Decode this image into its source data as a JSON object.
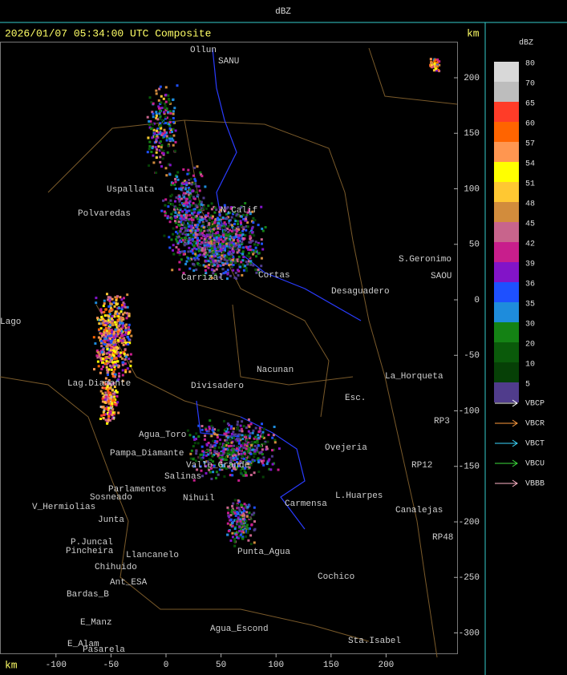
{
  "top_bar": {
    "title": "dBZ"
  },
  "map": {
    "header": "2026/01/07 05:34:00 UTC Composite",
    "y_unit": "km",
    "x_unit": "km",
    "x_ticks": [
      -100,
      -50,
      0,
      50,
      100,
      150,
      200
    ],
    "y_ticks": [
      200,
      150,
      100,
      50,
      0,
      -50,
      -100,
      -150,
      -200,
      -250,
      -300
    ],
    "places": [
      "Ollun",
      "SANU",
      "Uspallata",
      "Polvaredas",
      "N.Calif",
      "S.Geronimo",
      "SAOU",
      "Desaguadero",
      "Carrizal",
      "Cortas",
      "La_Horqueta",
      "Nacunan",
      "Divisadero",
      "Lag.Diamante",
      "Esc.",
      "Agua_Toro",
      "Pampa_Diamante",
      "Ovejeria",
      "Sosneado",
      "Parlamentos",
      "Salinas",
      "Valle_Grande",
      "Nihuil",
      "Carmensa",
      "L.Huarpes",
      "Canalejas",
      "V_Hermiolias",
      "Junta",
      "P.Juncal",
      "Pincheira",
      "Chihuido",
      "Llancanelo",
      "Punta_Agua",
      "Cochico",
      "Ant_ESA",
      "Bardas_B",
      "E_Manz",
      "E_Alam",
      "Pasarela",
      "Agua_Escond",
      "Sta.Isabel",
      "RP3",
      "RP12",
      "RP48",
      "Lago"
    ]
  },
  "color_scale": {
    "title": "dBZ",
    "levels": [
      {
        "value": 80,
        "color": "#d8d8d8"
      },
      {
        "value": 70,
        "color": "#bdbdbd"
      },
      {
        "value": 65,
        "color": "#ff3c28"
      },
      {
        "value": 60,
        "color": "#ff6400"
      },
      {
        "value": 57,
        "color": "#ff9650"
      },
      {
        "value": 54,
        "color": "#ffff00"
      },
      {
        "value": 51,
        "color": "#ffc832"
      },
      {
        "value": 48,
        "color": "#d28c3c"
      },
      {
        "value": 45,
        "color": "#c8648c"
      },
      {
        "value": 42,
        "color": "#c81e8c"
      },
      {
        "value": 39,
        "color": "#8214c8"
      },
      {
        "value": 36,
        "color": "#1e50ff"
      },
      {
        "value": 35,
        "color": "#1e8cdc"
      },
      {
        "value": 30,
        "color": "#148214"
      },
      {
        "value": 20,
        "color": "#0a5a0a"
      },
      {
        "value": 10,
        "color": "#064006"
      },
      {
        "value": 5,
        "color": "#503c8c"
      }
    ]
  },
  "tracks": [
    {
      "name": "VBCP",
      "color": "#ffffff"
    },
    {
      "name": "VBCR",
      "color": "#ff9a3c"
    },
    {
      "name": "VBCT",
      "color": "#3cd8ff"
    },
    {
      "name": "VBCU",
      "color": "#3cdc3c"
    },
    {
      "name": "VBBB",
      "color": "#ffb4c8"
    }
  ]
}
